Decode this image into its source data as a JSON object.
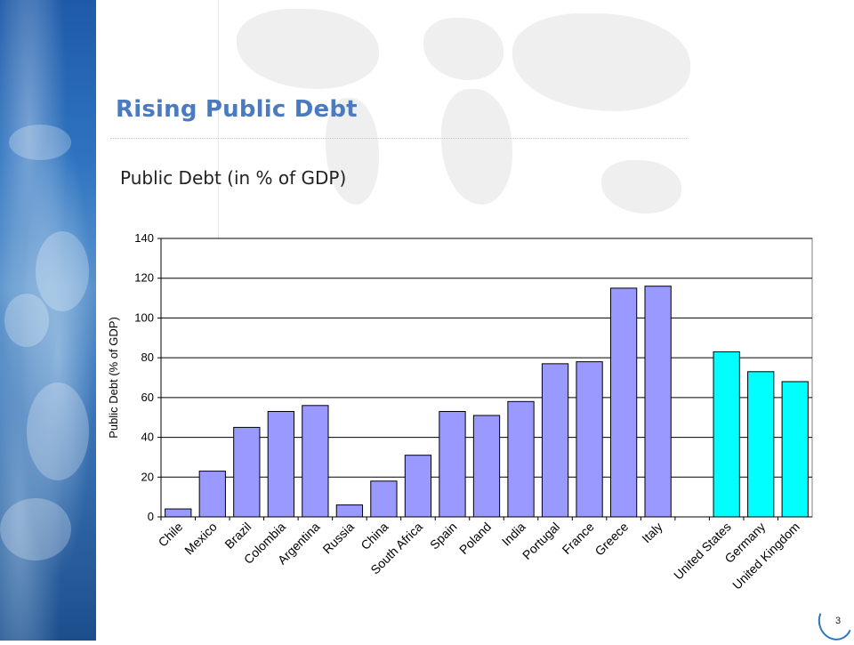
{
  "slide": {
    "title": "Rising Public Debt",
    "page_number": "3"
  },
  "chart_data": {
    "type": "bar",
    "title": "Public Debt (in % of GDP)",
    "xlabel": "",
    "ylabel": "Public Debt (% of GDP)",
    "ylim": [
      0,
      140
    ],
    "yticks": [
      0,
      20,
      40,
      60,
      80,
      100,
      120,
      140
    ],
    "grid": true,
    "categories": [
      "Chile",
      "Mexico",
      "Brazil",
      "Colombia",
      "Argentina",
      "Russia",
      "China",
      "South Africa",
      "Spain",
      "Poland",
      "India",
      "Portugal",
      "France",
      "Greece",
      "Italy",
      "",
      "United States",
      "Germany",
      "United Kingdom"
    ],
    "values": [
      4,
      23,
      45,
      53,
      56,
      6,
      18,
      31,
      53,
      51,
      58,
      77,
      78,
      115,
      116,
      null,
      83,
      73,
      68
    ],
    "colors": {
      "emerging_and_euro": "#9999ff",
      "advanced_other": "#00ffff",
      "gridline": "#000000",
      "bar_outline": "#000000"
    },
    "bar_color_groups": [
      "emerging_and_euro",
      "emerging_and_euro",
      "emerging_and_euro",
      "emerging_and_euro",
      "emerging_and_euro",
      "emerging_and_euro",
      "emerging_and_euro",
      "emerging_and_euro",
      "emerging_and_euro",
      "emerging_and_euro",
      "emerging_and_euro",
      "emerging_and_euro",
      "emerging_and_euro",
      "emerging_and_euro",
      "emerging_and_euro",
      "",
      "advanced_other",
      "advanced_other",
      "advanced_other"
    ]
  }
}
